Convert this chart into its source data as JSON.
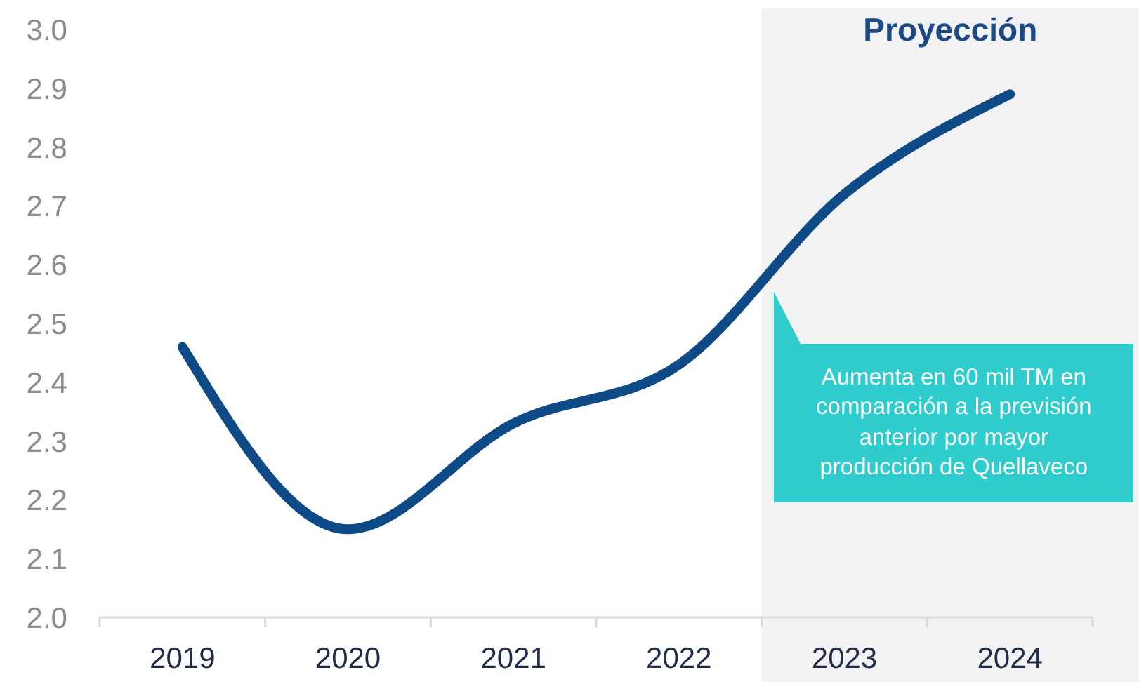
{
  "chart_data": {
    "type": "line",
    "categories": [
      "2019",
      "2020",
      "2021",
      "2022",
      "2023",
      "2024"
    ],
    "series": [
      {
        "color": "#0d4a86",
        "values": [
          2.46,
          2.15,
          2.33,
          2.43,
          2.72,
          2.89
        ]
      }
    ],
    "ylim": [
      2,
      3
    ],
    "yticks": [
      {
        "value": 2,
        "label": "2.0"
      },
      2.1,
      2.2,
      2.3,
      2.4,
      2.5,
      2.6,
      2.7,
      2.8,
      2.9,
      {
        "value": 3,
        "label": "3.0"
      }
    ],
    "marker": "none",
    "line_style": "solid",
    "bands": [
      {
        "axis": "x",
        "from": "2023",
        "to": "2024",
        "label": "Proyección",
        "color": "#f2f2f2"
      }
    ],
    "annotations": [
      "Aumenta en 60 mil TM en comparación a la previsión anterior por mayor producción de Quellaveco"
    ]
  }
}
